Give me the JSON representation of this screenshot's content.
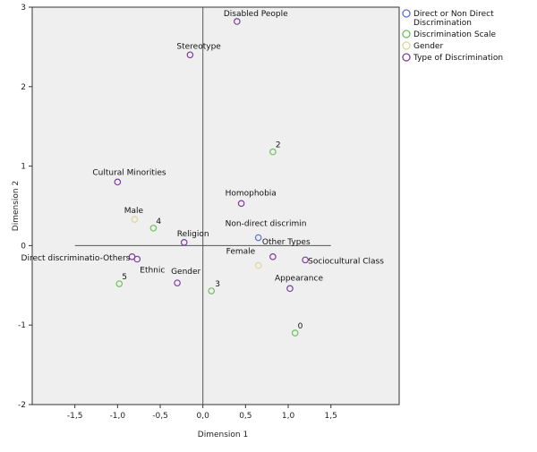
{
  "chart_data": {
    "type": "scatter",
    "xlabel": "Dimension 1",
    "ylabel": "Dimension 2",
    "xlim": [
      -2.0,
      2.3
    ],
    "ylim": [
      -2,
      3
    ],
    "xticks": [
      -1.5,
      -1.0,
      -0.5,
      0.0,
      0.5,
      1.0,
      1.5
    ],
    "xtick_labels": [
      "-1,5",
      "-1,0",
      "-0,5",
      "0,0",
      "0,5",
      "1,0",
      "1,5"
    ],
    "yticks": [
      -2,
      -1,
      0,
      1,
      2,
      3
    ],
    "ytick_labels": [
      "-2",
      "-1",
      "0",
      "1",
      "2",
      "3"
    ],
    "grid": false,
    "legend_position": "top-right outside",
    "series": [
      {
        "name": "Direct or Non Direct Discrimination",
        "color": "#5b6fd6",
        "points": [
          {
            "x": 0.65,
            "y": 0.1,
            "label": "Non-direct discrimin"
          }
        ]
      },
      {
        "name": "Discrimination Scale",
        "color": "#6cc05a",
        "points": [
          {
            "x": 0.82,
            "y": 1.18,
            "label": "2"
          },
          {
            "x": -0.58,
            "y": 0.22,
            "label": "4"
          },
          {
            "x": -0.98,
            "y": -0.48,
            "label": "5"
          },
          {
            "x": 0.1,
            "y": -0.57,
            "label": "3"
          },
          {
            "x": 1.08,
            "y": -1.1,
            "label": "0"
          }
        ]
      },
      {
        "name": "Gender",
        "color": "#e0d49a",
        "points": [
          {
            "x": -0.8,
            "y": 0.33,
            "label": "Male"
          },
          {
            "x": 0.65,
            "y": -0.25,
            "label": "Female"
          }
        ]
      },
      {
        "name": "Type of Discrimination",
        "color": "#7b3fa0",
        "points": [
          {
            "x": 0.4,
            "y": 2.82,
            "label": "Disabled People"
          },
          {
            "x": -0.15,
            "y": 2.4,
            "label": "Stereotype"
          },
          {
            "x": -1.0,
            "y": 0.8,
            "label": "Cultural Minorities"
          },
          {
            "x": 0.45,
            "y": 0.53,
            "label": "Homophobia"
          },
          {
            "x": -0.22,
            "y": 0.04,
            "label": "Religion"
          },
          {
            "x": 0.82,
            "y": -0.14,
            "label": "Other Types"
          },
          {
            "x": 1.2,
            "y": -0.18,
            "label": "Sociocultural Class"
          },
          {
            "x": -0.83,
            "y": -0.14,
            "label": "Direct discriminatio-Others"
          },
          {
            "x": -0.77,
            "y": -0.17,
            "label": "Ethnic"
          },
          {
            "x": -0.3,
            "y": -0.47,
            "label": "Gender"
          },
          {
            "x": 1.02,
            "y": -0.54,
            "label": "Appearance"
          }
        ]
      }
    ]
  }
}
